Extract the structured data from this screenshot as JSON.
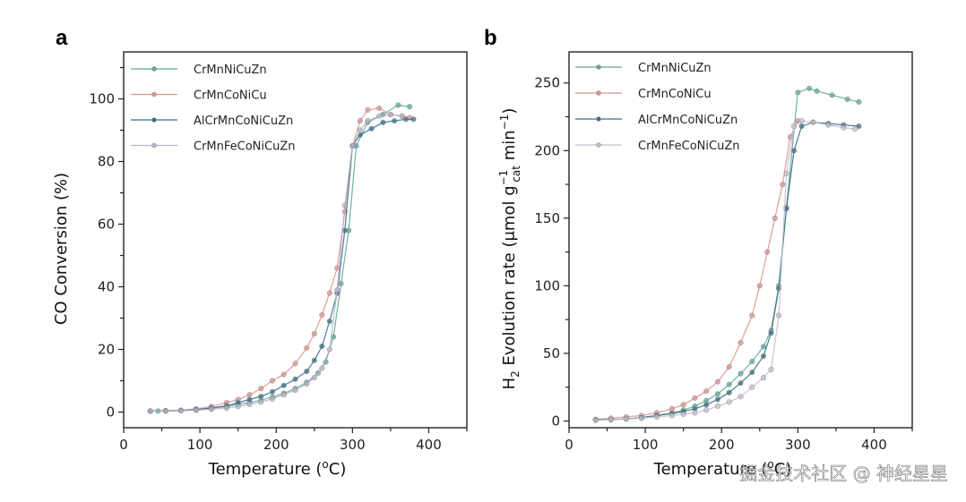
{
  "watermark": "掘金技术社区 @ 神经星星",
  "chart_data": [
    {
      "panel": "a",
      "type": "line",
      "title": "",
      "xlabel": "Temperature (°C)",
      "ylabel": "CO Conversion (%)",
      "xlim": [
        0,
        450
      ],
      "ylim": [
        -5,
        115
      ],
      "xticks": [
        0,
        100,
        200,
        300,
        400
      ],
      "yticks": [
        0,
        20,
        40,
        60,
        80,
        100
      ],
      "grid": false,
      "legend": "top-left",
      "series": [
        {
          "name": "CrMnNiCuZn",
          "color": "#5fa89a",
          "x": [
            35,
            45,
            55,
            75,
            95,
            115,
            135,
            150,
            165,
            180,
            195,
            210,
            225,
            240,
            255,
            265,
            275,
            285,
            295,
            305,
            320,
            340,
            360,
            375
          ],
          "y": [
            0.3,
            0.3,
            0.4,
            0.5,
            0.8,
            1.2,
            1.8,
            2.5,
            3.0,
            3.8,
            4.8,
            6.0,
            7.5,
            9.5,
            12.5,
            16.0,
            24.0,
            41.0,
            58.0,
            85.0,
            92.5,
            95.0,
            98.0,
            97.5
          ]
        },
        {
          "name": "CrMnCoNiCu",
          "color": "#d9938e",
          "x": [
            35,
            55,
            75,
            95,
            115,
            135,
            150,
            165,
            180,
            195,
            210,
            225,
            240,
            250,
            260,
            270,
            280,
            290,
            300,
            310,
            320,
            335,
            350,
            365,
            375
          ],
          "y": [
            0.3,
            0.4,
            0.6,
            1.0,
            1.8,
            3.0,
            4.0,
            5.5,
            7.5,
            10.0,
            12.0,
            15.5,
            20.5,
            25.0,
            31.0,
            38.0,
            46.0,
            64.0,
            85.0,
            93.0,
            96.5,
            97.0,
            95.0,
            94.5,
            94.0
          ]
        },
        {
          "name": "AlCrMnCoNiCuZn",
          "color": "#3a6f86",
          "x": [
            35,
            55,
            75,
            95,
            115,
            135,
            150,
            165,
            180,
            195,
            210,
            225,
            240,
            250,
            260,
            270,
            280,
            290,
            300,
            310,
            325,
            340,
            355,
            370,
            380
          ],
          "y": [
            0.3,
            0.4,
            0.5,
            0.8,
            1.3,
            2.0,
            3.0,
            4.0,
            5.0,
            6.5,
            8.5,
            10.5,
            13.0,
            16.5,
            21.0,
            29.0,
            38.0,
            58.0,
            85.0,
            88.5,
            90.5,
            92.5,
            93.0,
            93.5,
            93.5
          ]
        },
        {
          "name": "CrMnFeCoNiCuZn",
          "color": "#b7b3c6",
          "x": [
            35,
            55,
            75,
            95,
            115,
            135,
            150,
            165,
            180,
            195,
            210,
            225,
            240,
            250,
            260,
            270,
            280,
            290,
            300,
            310,
            320,
            335,
            350,
            365
          ],
          "y": [
            0.3,
            0.3,
            0.4,
            0.6,
            0.9,
            1.3,
            1.8,
            2.5,
            3.2,
            4.2,
            5.5,
            7.0,
            9.0,
            11.0,
            14.0,
            20.0,
            39.0,
            66.0,
            85.0,
            90.0,
            93.0,
            94.5,
            95.0,
            94.5
          ]
        }
      ]
    },
    {
      "panel": "b",
      "type": "line",
      "title": "",
      "xlabel": "Temperature (°C)",
      "ylabel": "H2 Evolution rate (μmol g_cat^-1 min^-1)",
      "ylabel_parts": {
        "pre": "H",
        "sub1": "2",
        "mid": " Evolution rate (μmol g",
        "sup2": "−1",
        "sub2": "cat",
        "post": " min",
        "sup3": "−1",
        "end": ")"
      },
      "xlim": [
        0,
        450
      ],
      "ylim": [
        -5,
        273
      ],
      "xticks": [
        0,
        100,
        200,
        300,
        400
      ],
      "yticks": [
        0,
        50,
        100,
        150,
        200,
        250
      ],
      "grid": false,
      "legend": "top-left",
      "series": [
        {
          "name": "CrMnNiCuZn",
          "color": "#5fa89a",
          "x": [
            35,
            55,
            75,
            95,
            115,
            135,
            150,
            165,
            180,
            195,
            210,
            225,
            240,
            255,
            265,
            275,
            285,
            300,
            315,
            325,
            345,
            365,
            380
          ],
          "y": [
            1,
            1,
            1.5,
            2.5,
            4,
            6,
            8,
            11,
            15,
            20,
            27,
            35,
            44,
            55,
            67,
            100,
            158,
            243,
            246,
            244,
            241,
            238,
            236
          ]
        },
        {
          "name": "CrMnCoNiCu",
          "color": "#d9938e",
          "x": [
            35,
            55,
            75,
            95,
            115,
            135,
            150,
            165,
            180,
            195,
            210,
            225,
            240,
            250,
            260,
            270,
            280,
            290,
            300
          ],
          "y": [
            1,
            2,
            3,
            4,
            6,
            9,
            12,
            17,
            22,
            29,
            40,
            58,
            78,
            100,
            125,
            150,
            175,
            210,
            222
          ]
        },
        {
          "name": "AlCrMnCoNiCuZn",
          "color": "#3a6f86",
          "x": [
            35,
            55,
            75,
            95,
            115,
            135,
            150,
            165,
            180,
            195,
            210,
            225,
            240,
            255,
            265,
            275,
            285,
            295,
            305,
            320,
            340,
            360,
            380
          ],
          "y": [
            1,
            1,
            1.5,
            2.5,
            4,
            5.5,
            7,
            9,
            12,
            16,
            21,
            28,
            36,
            48,
            65,
            98,
            157,
            200,
            218,
            221,
            220,
            219,
            218
          ]
        },
        {
          "name": "CrMnFeCoNiCuZn",
          "color": "#c3bccc",
          "x": [
            35,
            55,
            75,
            95,
            115,
            135,
            150,
            165,
            180,
            195,
            210,
            225,
            240,
            255,
            265,
            275,
            285,
            295,
            305,
            320,
            340,
            360,
            375
          ],
          "y": [
            0.5,
            1,
            1.5,
            2,
            3,
            4,
            5,
            6,
            8,
            11,
            14,
            18,
            25,
            32,
            38,
            78,
            183,
            218,
            222,
            221,
            219,
            217,
            216
          ]
        }
      ]
    }
  ]
}
